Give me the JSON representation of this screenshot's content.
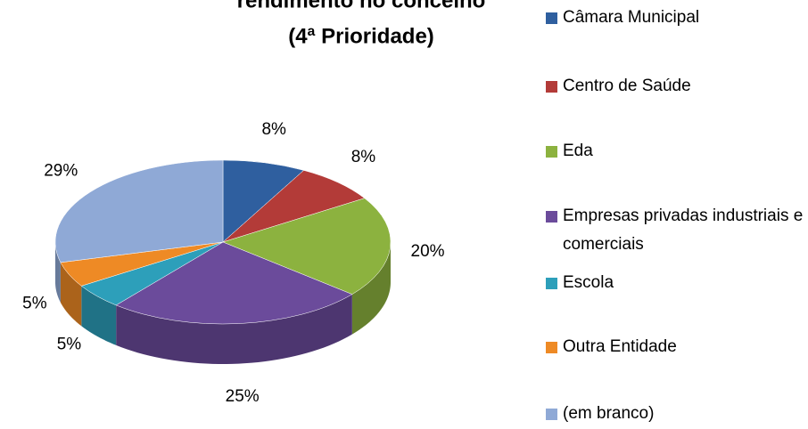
{
  "chart_data": {
    "type": "pie",
    "title": [
      "rendimento no concelho",
      "(4ª Prioridade)"
    ],
    "categories": [
      "Câmara Municipal",
      "Centro de Saúde",
      "Eda",
      "Empresas privadas industriais e comerciais",
      "Escola",
      "Outra Entidade",
      "(em branco)"
    ],
    "values": [
      8,
      8,
      20,
      25,
      5,
      5,
      29
    ],
    "value_labels": [
      "8%",
      "8%",
      "20%",
      "25%",
      "5%",
      "5%",
      "29%"
    ],
    "colors": [
      "#2f5f9f",
      "#b33b38",
      "#8cb23f",
      "#6b4b9b",
      "#2d9fba",
      "#ee8a25",
      "#8fa9d6"
    ],
    "legend": "right"
  }
}
